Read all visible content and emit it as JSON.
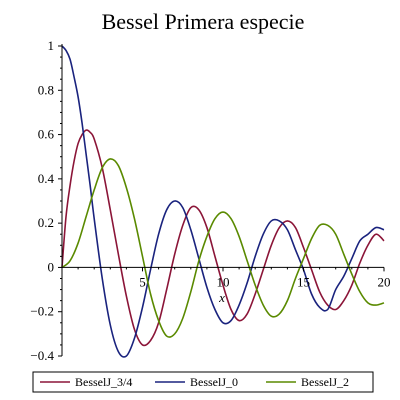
{
  "chart_data": {
    "type": "line",
    "title": "Bessel Primera especie",
    "xlabel": "x",
    "ylabel": "",
    "xlim": [
      0,
      20
    ],
    "ylim": [
      -0.4,
      1
    ],
    "x_ticks": [
      5,
      10,
      15,
      20
    ],
    "y_ticks": [
      -0.4,
      -0.2,
      0,
      0.2,
      0.4,
      0.6,
      0.8,
      1
    ],
    "grid": false,
    "legend_position": "bottom",
    "series": [
      {
        "name": "BesselJ_3/4",
        "color": "#8b1538",
        "x": [
          0,
          0.25,
          0.5,
          0.75,
          1,
          1.25,
          1.5,
          1.75,
          2,
          2.5,
          3,
          3.5,
          4,
          4.5,
          5,
          5.5,
          6,
          6.5,
          7,
          7.5,
          8,
          8.5,
          9,
          9.5,
          10,
          10.5,
          11,
          11.5,
          12,
          12.5,
          13,
          13.5,
          14,
          14.5,
          15,
          15.5,
          16,
          16.5,
          17,
          17.5,
          18,
          18.5,
          19,
          19.5,
          20
        ],
        "y": [
          0,
          0.23,
          0.37,
          0.48,
          0.56,
          0.6,
          0.62,
          0.61,
          0.58,
          0.45,
          0.26,
          0.06,
          -0.13,
          -0.28,
          -0.35,
          -0.33,
          -0.25,
          -0.1,
          0.06,
          0.19,
          0.27,
          0.26,
          0.18,
          0.05,
          -0.08,
          -0.19,
          -0.24,
          -0.21,
          -0.12,
          -0.01,
          0.1,
          0.18,
          0.21,
          0.18,
          0.09,
          -0.01,
          -0.11,
          -0.17,
          -0.19,
          -0.15,
          -0.08,
          0.02,
          0.1,
          0.15,
          0.12
        ]
      },
      {
        "name": "BesselJ_0",
        "color": "#1a237e",
        "x": [
          0,
          0.25,
          0.5,
          0.75,
          1,
          1.25,
          1.5,
          1.75,
          2,
          2.5,
          3,
          3.5,
          4,
          4.5,
          5,
          5.5,
          6,
          6.5,
          7,
          7.5,
          8,
          8.5,
          9,
          9.5,
          10,
          10.5,
          11,
          11.5,
          12,
          12.5,
          13,
          13.5,
          14,
          14.5,
          15,
          15.5,
          16,
          16.5,
          17,
          17.5,
          18,
          18.5,
          19,
          19.5,
          20
        ],
        "y": [
          1,
          0.98,
          0.94,
          0.86,
          0.77,
          0.65,
          0.51,
          0.37,
          0.22,
          -0.05,
          -0.26,
          -0.38,
          -0.4,
          -0.32,
          -0.18,
          -0.01,
          0.15,
          0.26,
          0.3,
          0.27,
          0.17,
          0.04,
          -0.09,
          -0.19,
          -0.25,
          -0.24,
          -0.17,
          -0.07,
          0.05,
          0.15,
          0.21,
          0.21,
          0.17,
          0.08,
          -0.01,
          -0.12,
          -0.18,
          -0.19,
          -0.1,
          -0.04,
          0.04,
          0.12,
          0.15,
          0.18,
          0.17
        ]
      },
      {
        "name": "BesselJ_2",
        "color": "#5a8a00",
        "x": [
          0,
          0.5,
          1,
          1.5,
          2,
          2.5,
          3,
          3.5,
          4,
          4.5,
          5,
          5.5,
          6,
          6.5,
          7,
          7.5,
          8,
          8.5,
          9,
          9.5,
          10,
          10.5,
          11,
          11.5,
          12,
          12.5,
          13,
          13.5,
          14,
          14.5,
          15,
          15.5,
          16,
          16.5,
          17,
          17.5,
          18,
          18.5,
          19,
          19.5,
          20
        ],
        "y": [
          0,
          0.03,
          0.11,
          0.23,
          0.35,
          0.45,
          0.49,
          0.46,
          0.36,
          0.22,
          0.05,
          -0.12,
          -0.24,
          -0.31,
          -0.3,
          -0.23,
          -0.11,
          0.03,
          0.14,
          0.22,
          0.25,
          0.22,
          0.14,
          0.03,
          -0.08,
          -0.17,
          -0.22,
          -0.21,
          -0.15,
          -0.05,
          0.04,
          0.13,
          0.19,
          0.19,
          0.15,
          0.06,
          -0.03,
          -0.11,
          -0.16,
          -0.17,
          -0.16
        ]
      }
    ]
  }
}
